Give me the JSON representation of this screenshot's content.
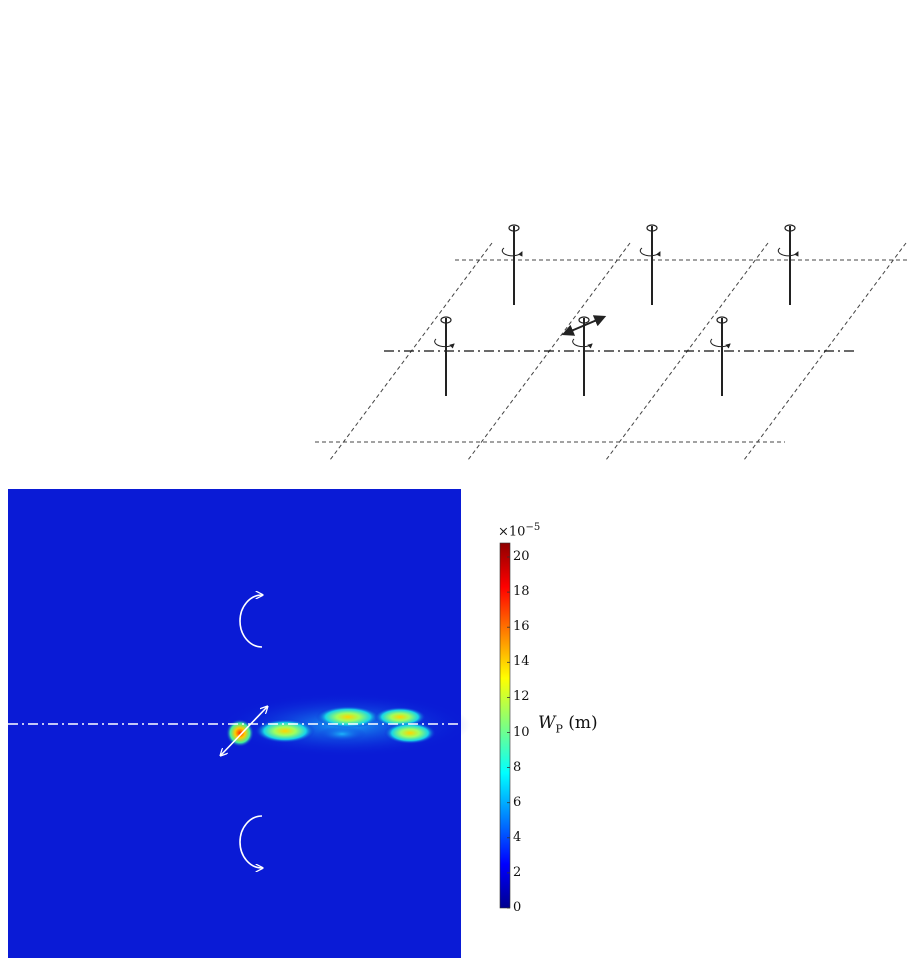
{
  "colorbar": {
    "exponent_base": "×10",
    "exponent_power": "−5",
    "title_main": "W",
    "title_sub": "P",
    "title_unit": "(m)",
    "ticks": [
      "0",
      "2",
      "4",
      "6",
      "8",
      "10",
      "12",
      "14",
      "16",
      "18",
      "20"
    ]
  },
  "colors": {
    "field_background": "#0a1bd6",
    "axis_line": "#ffffff",
    "schematic_line": "#222222"
  }
}
